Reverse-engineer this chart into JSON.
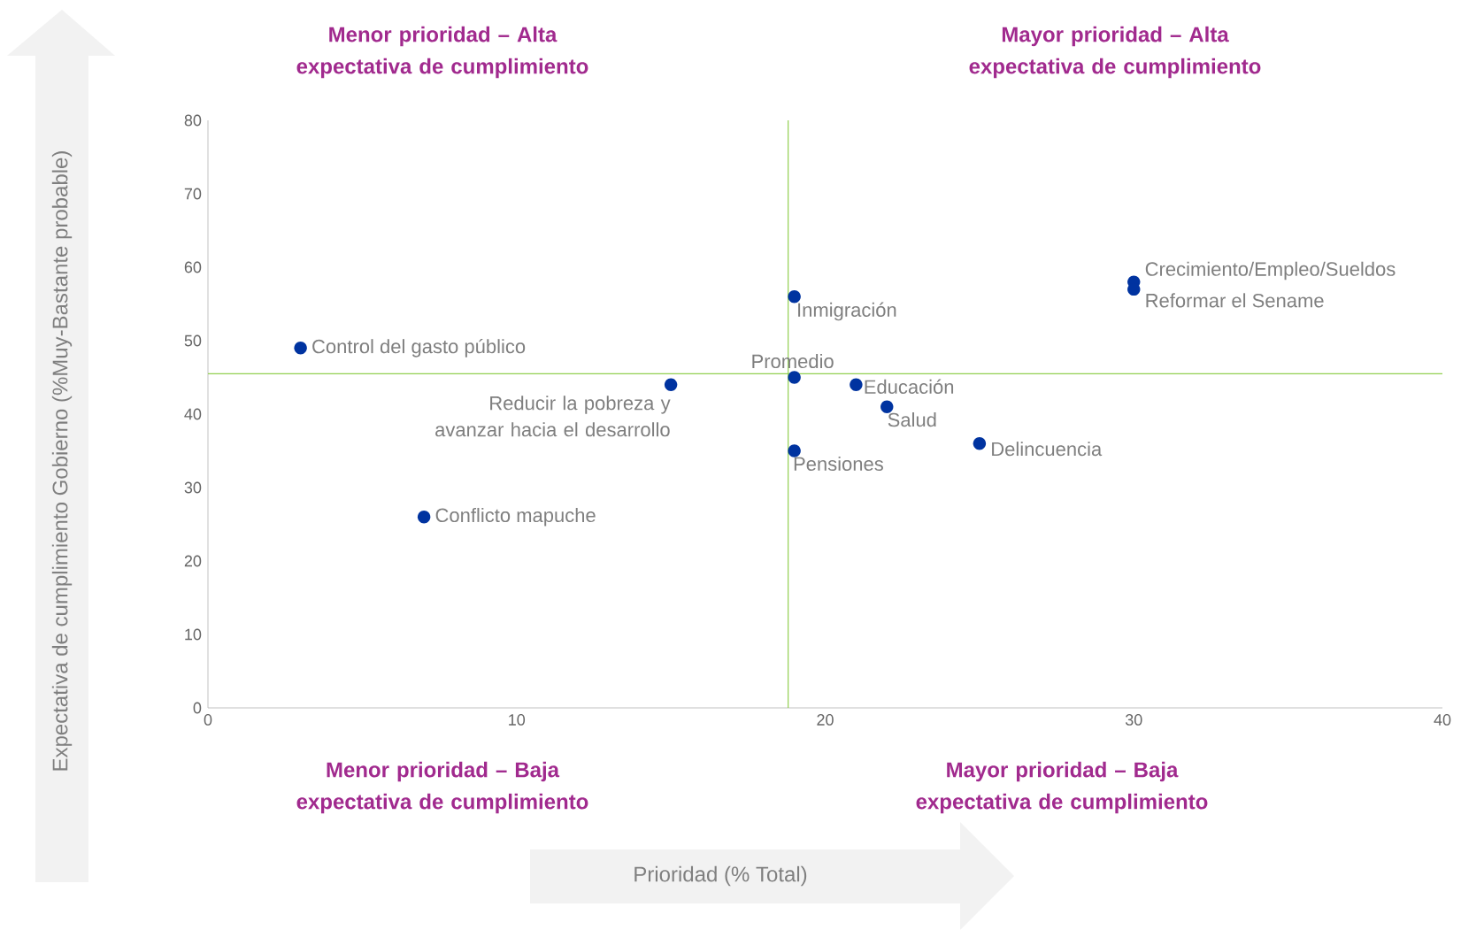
{
  "chart_data": {
    "type": "scatter",
    "xlim": [
      0,
      40
    ],
    "xticks": [
      0,
      10,
      20,
      30,
      40
    ],
    "ylim": [
      0,
      80
    ],
    "yticks": [
      0,
      10,
      20,
      30,
      40,
      50,
      60,
      70,
      80
    ],
    "marker": "circle",
    "series": [
      {
        "color": "#0033a0",
        "x": [
          3,
          7,
          15,
          19,
          19,
          19,
          21,
          22,
          25,
          30,
          30
        ],
        "values": [
          49,
          26,
          44,
          45,
          56,
          35,
          44,
          41,
          36,
          58,
          57
        ]
      }
    ],
    "ref_lines": [
      {
        "axis": "x",
        "value": 18.8,
        "color": "#92d050"
      },
      {
        "axis": "y",
        "value": 45.5,
        "color": "#92d050"
      }
    ],
    "annotations": [
      "Menor prioridad – Alta expectativa de cumplimiento",
      "Mayor prioridad – Alta expectativa de cumplimiento",
      "Menor prioridad –  Baja expectativa de cumplimiento",
      "Mayor prioridad – Baja expectativa de cumplimiento",
      "Prioridad (% Total)",
      "Expectativa de cumplimiento Gobierno  (%Muy-Bastante probable)",
      {
        "text": "Control del gasto público",
        "x": 3,
        "y": 49
      },
      {
        "text": "Conflicto mapuche",
        "x": 7,
        "y": 26
      },
      {
        "text": "Reducir la pobreza y avanzar hacia el desarrollo",
        "x": 15,
        "y": 44
      },
      {
        "text": "Promedio",
        "x": 19,
        "y": 45
      },
      {
        "text": "Inmigración",
        "x": 19,
        "y": 56
      },
      {
        "text": "Pensiones",
        "x": 19,
        "y": 35
      },
      {
        "text": "Educación",
        "x": 21,
        "y": 44
      },
      {
        "text": "Salud",
        "x": 22,
        "y": 41
      },
      {
        "text": "Delincuencia",
        "x": 25,
        "y": 36
      },
      {
        "text": "Crecimiento/Empleo/Sueldos",
        "x": 30,
        "y": 58
      },
      {
        "text": "Reformar el Sename",
        "x": 30,
        "y": 57
      }
    ]
  }
}
